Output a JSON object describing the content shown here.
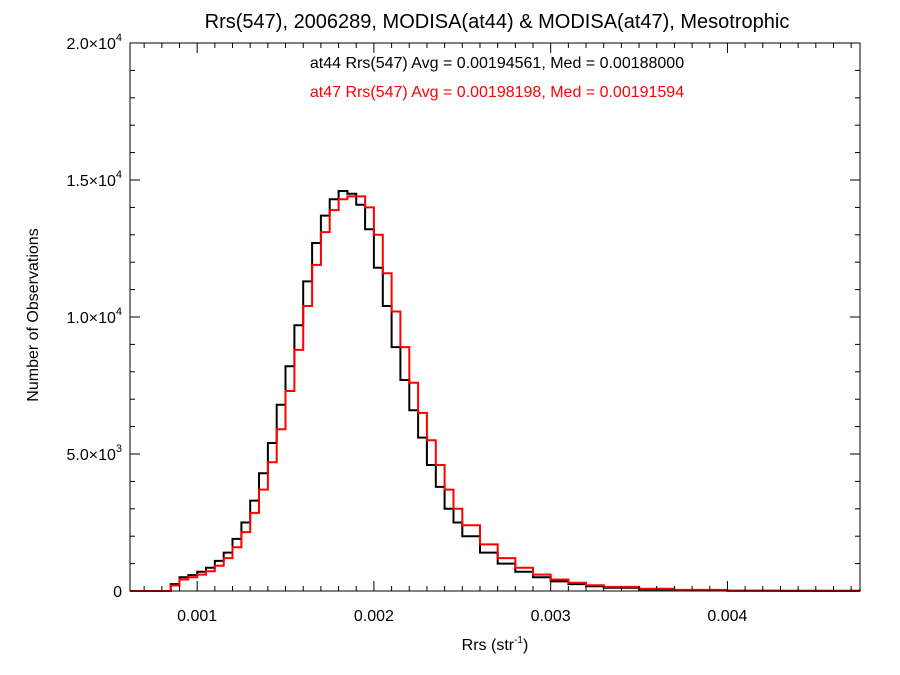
{
  "chart_data": {
    "type": "line",
    "title": "Rrs(547), 2006289, MODISA(at44) & MODISA(at47), Mesotrophic",
    "xlabel": "Rrs (str",
    "xlabel_sup": "-1",
    "xlabel_suffix": ")",
    "ylabel": "Number of Observations",
    "xlim": [
      0.00062,
      0.00475
    ],
    "ylim": [
      0,
      20000
    ],
    "x_ticks": [
      0.001,
      0.002,
      0.003,
      0.004
    ],
    "x_tick_labels": [
      "0.001",
      "0.002",
      "0.003",
      "0.004"
    ],
    "y_ticks": [
      {
        "value": 0,
        "mantissa": "0",
        "exp": ""
      },
      {
        "value": 5000,
        "mantissa": "5.0×10",
        "exp": "3"
      },
      {
        "value": 10000,
        "mantissa": "1.0×10",
        "exp": "4"
      },
      {
        "value": 15000,
        "mantissa": "1.5×10",
        "exp": "4"
      },
      {
        "value": 20000,
        "mantissa": "2.0×10",
        "exp": "4"
      }
    ],
    "annotations": [
      {
        "text": "at44 Rrs(547) Avg = 0.00194561, Med = 0.00188000",
        "color": "#000000"
      },
      {
        "text": "at47 Rrs(547) Avg = 0.00198198, Med = 0.00191594",
        "color": "#ff0000"
      }
    ],
    "series": [
      {
        "color": "#000000",
        "x": [
          0.00062,
          0.0008,
          0.00085,
          0.0009,
          0.00095,
          0.001,
          0.00105,
          0.0011,
          0.00115,
          0.0012,
          0.00125,
          0.0013,
          0.00135,
          0.0014,
          0.00145,
          0.0015,
          0.00155,
          0.0016,
          0.00165,
          0.0017,
          0.00175,
          0.0018,
          0.00185,
          0.0019,
          0.00195,
          0.002,
          0.00205,
          0.0021,
          0.00215,
          0.0022,
          0.00225,
          0.0023,
          0.00235,
          0.0024,
          0.00245,
          0.0025,
          0.0026,
          0.0027,
          0.0028,
          0.0029,
          0.003,
          0.0031,
          0.0032,
          0.0033,
          0.0035,
          0.0037,
          0.004,
          0.0043,
          0.00475
        ],
        "y": [
          0,
          0,
          250,
          500,
          580,
          700,
          850,
          1100,
          1400,
          1900,
          2500,
          3300,
          4300,
          5400,
          6800,
          8200,
          9700,
          11300,
          12700,
          13700,
          14300,
          14600,
          14500,
          14100,
          13200,
          11800,
          10400,
          8900,
          7700,
          6600,
          5600,
          4600,
          3800,
          3000,
          2500,
          2000,
          1400,
          1000,
          700,
          500,
          350,
          250,
          170,
          120,
          60,
          30,
          12,
          5,
          0
        ]
      },
      {
        "color": "#ff0000",
        "x": [
          0.00062,
          0.0008,
          0.00085,
          0.0009,
          0.00095,
          0.001,
          0.00105,
          0.0011,
          0.00115,
          0.0012,
          0.00125,
          0.0013,
          0.00135,
          0.0014,
          0.00145,
          0.0015,
          0.00155,
          0.0016,
          0.00165,
          0.0017,
          0.00175,
          0.0018,
          0.00185,
          0.0019,
          0.00195,
          0.002,
          0.00205,
          0.0021,
          0.00215,
          0.0022,
          0.00225,
          0.0023,
          0.00235,
          0.0024,
          0.00245,
          0.0025,
          0.0026,
          0.0027,
          0.0028,
          0.0029,
          0.003,
          0.0031,
          0.0032,
          0.0033,
          0.0035,
          0.0037,
          0.004,
          0.0043,
          0.00475
        ],
        "y": [
          0,
          0,
          200,
          420,
          500,
          600,
          720,
          920,
          1200,
          1600,
          2150,
          2850,
          3700,
          4700,
          5900,
          7300,
          8800,
          10400,
          11900,
          13100,
          13900,
          14300,
          14400,
          14400,
          14000,
          13000,
          11600,
          10200,
          8900,
          7600,
          6500,
          5500,
          4600,
          3700,
          3000,
          2400,
          1700,
          1200,
          850,
          600,
          420,
          300,
          210,
          150,
          80,
          40,
          15,
          6,
          0
        ]
      }
    ]
  }
}
